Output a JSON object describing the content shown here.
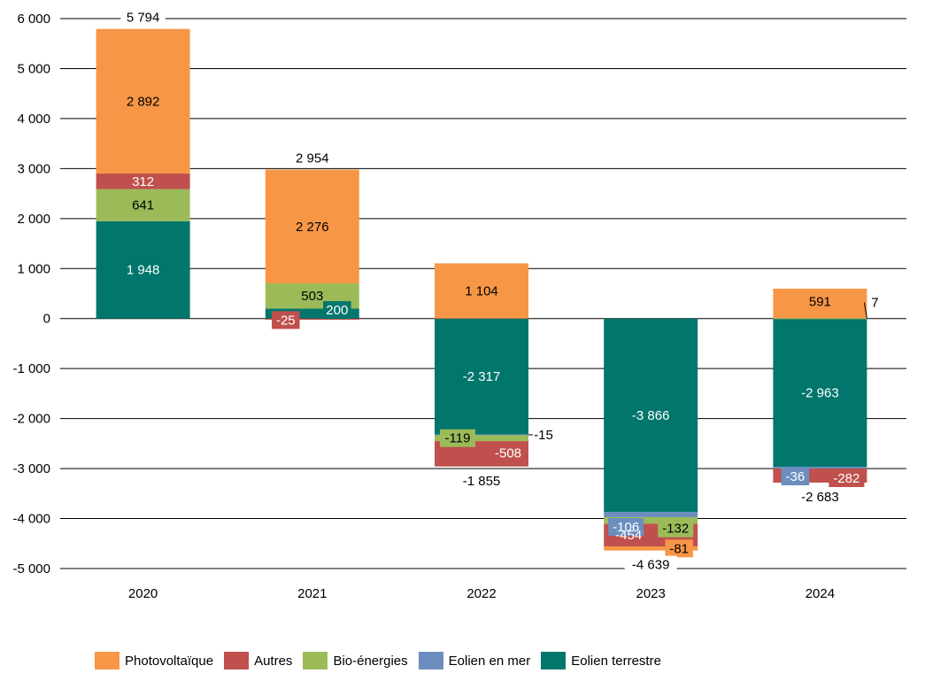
{
  "chart_data": {
    "type": "bar",
    "stacked": true,
    "title": "",
    "xlabel": "",
    "ylabel": "",
    "ylim": [
      -5000,
      6000
    ],
    "yticks": [
      6000,
      5000,
      4000,
      3000,
      2000,
      1000,
      0,
      -1000,
      -2000,
      -3000,
      -4000,
      -5000
    ],
    "ytick_labels": [
      "6 000",
      "5 000",
      "4 000",
      "3 000",
      "2 000",
      "1 000",
      "0",
      "-1 000",
      "-2 000",
      "-3 000",
      "-4 000",
      "-5 000"
    ],
    "grid": true,
    "legend_position": "bottom",
    "categories": [
      "2020",
      "2021",
      "2022",
      "2023",
      "2024"
    ],
    "series": [
      {
        "name": "Eolien terrestre",
        "color": "#00766c",
        "label_color": "#ffffff",
        "values": [
          1948,
          200,
          -2317,
          -3866,
          -2963
        ],
        "labels": [
          "1 948",
          "200",
          "-2 317",
          "-3 866",
          "-2 963"
        ]
      },
      {
        "name": "Eolien en mer",
        "color": "#6c8ebf",
        "label_color": "#ffffff",
        "values": [
          0,
          0,
          -15,
          -106,
          -36
        ],
        "labels": [
          "",
          "",
          "-15",
          "-106",
          "-36"
        ]
      },
      {
        "name": "Bio-énergies",
        "color": "#9bbb59",
        "label_color": "#000000",
        "values": [
          641,
          503,
          -119,
          -132,
          7
        ],
        "labels": [
          "641",
          "503",
          "-119",
          "-132",
          "7"
        ]
      },
      {
        "name": "Autres",
        "color": "#c0504d",
        "label_color": "#ffffff",
        "values": [
          312,
          -25,
          -508,
          -454,
          -282
        ],
        "labels": [
          "312",
          "-25",
          "-508",
          "-454",
          "-282"
        ]
      },
      {
        "name": "Photovoltaïque",
        "color": "#f79646",
        "label_color": "#000000",
        "values": [
          2892,
          2276,
          1104,
          -81,
          591
        ],
        "labels": [
          "2 892",
          "2 276",
          "1 104",
          "-81",
          "591"
        ]
      }
    ],
    "totals": [
      5794,
      2954,
      -1855,
      -4639,
      -2683
    ],
    "total_labels": [
      "5 794",
      "2 954",
      "-1 855",
      "-4 639",
      "-2 683"
    ]
  },
  "legend": [
    {
      "name": "Photovoltaïque",
      "color": "#f79646"
    },
    {
      "name": "Autres",
      "color": "#c0504d"
    },
    {
      "name": "Bio-énergies",
      "color": "#9bbb59"
    },
    {
      "name": "Eolien en mer",
      "color": "#6c8ebf"
    },
    {
      "name": "Eolien terrestre",
      "color": "#00766c"
    }
  ]
}
